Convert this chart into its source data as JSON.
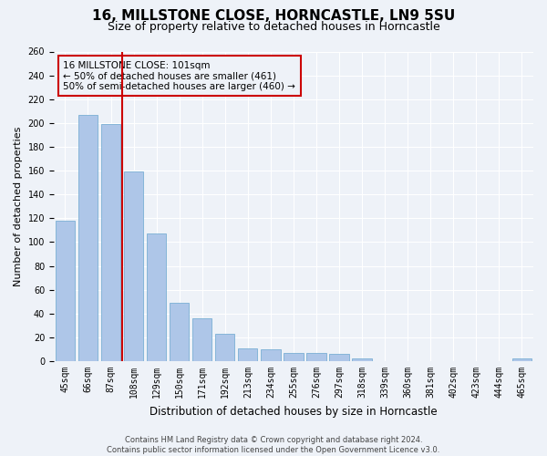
{
  "title1": "16, MILLSTONE CLOSE, HORNCASTLE, LN9 5SU",
  "title2": "Size of property relative to detached houses in Horncastle",
  "xlabel": "Distribution of detached houses by size in Horncastle",
  "ylabel": "Number of detached properties",
  "categories": [
    "45sqm",
    "66sqm",
    "87sqm",
    "108sqm",
    "129sqm",
    "150sqm",
    "171sqm",
    "192sqm",
    "213sqm",
    "234sqm",
    "255sqm",
    "276sqm",
    "297sqm",
    "318sqm",
    "339sqm",
    "360sqm",
    "381sqm",
    "402sqm",
    "423sqm",
    "444sqm",
    "465sqm"
  ],
  "values": [
    118,
    207,
    199,
    159,
    107,
    49,
    36,
    23,
    11,
    10,
    7,
    7,
    6,
    2,
    0,
    0,
    0,
    0,
    0,
    0,
    2
  ],
  "bar_color": "#aec6e8",
  "bar_edge_color": "#7aafd4",
  "property_line_color": "#cc0000",
  "property_line_x": 2.5,
  "annotation_text": "16 MILLSTONE CLOSE: 101sqm\n← 50% of detached houses are smaller (461)\n50% of semi-detached houses are larger (460) →",
  "annotation_box_color": "#cc0000",
  "ylim": [
    0,
    260
  ],
  "yticks": [
    0,
    20,
    40,
    60,
    80,
    100,
    120,
    140,
    160,
    180,
    200,
    220,
    240,
    260
  ],
  "footnote": "Contains HM Land Registry data © Crown copyright and database right 2024.\nContains public sector information licensed under the Open Government Licence v3.0.",
  "bg_color": "#eef2f8",
  "grid_color": "#ffffff",
  "title1_fontsize": 11,
  "title2_fontsize": 9,
  "xlabel_fontsize": 8.5,
  "ylabel_fontsize": 8,
  "tick_fontsize": 7,
  "annot_fontsize": 7.5,
  "footnote_fontsize": 6
}
